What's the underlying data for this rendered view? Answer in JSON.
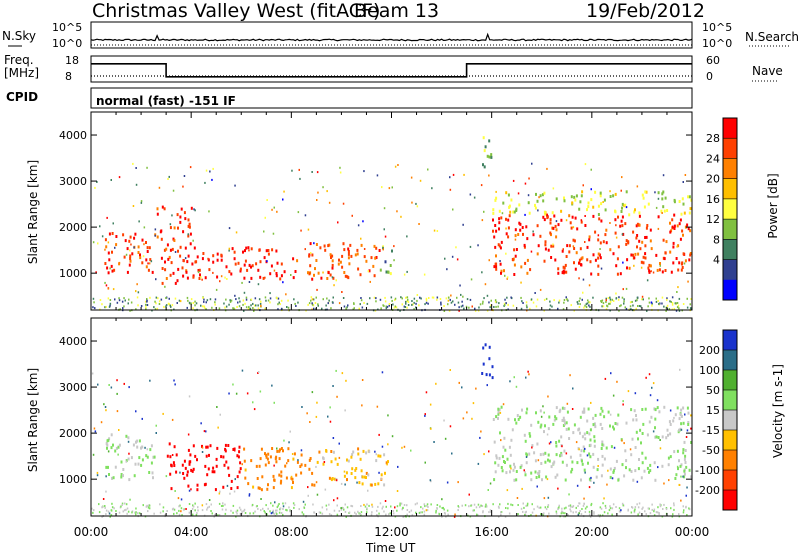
{
  "header": {
    "title_station": "Christmas Valley West (fitACF)",
    "title_beam": "Beam 13",
    "title_date": "19/Feb/2012"
  },
  "noise_panel": {
    "left_label": "N.Sky",
    "right_label": "N.Search",
    "left_ticks": [
      "10^5",
      "10^0"
    ],
    "right_ticks": [
      "10^5",
      "10^0"
    ]
  },
  "freq_panel": {
    "left_label_1": "Freq.",
    "left_label_2": "[MHz]",
    "right_label": "Nave",
    "left_ticks": [
      "18",
      "8"
    ],
    "right_ticks": [
      "60",
      "0"
    ]
  },
  "cpid_panel": {
    "label": "CPID",
    "text": "normal (fast) -151 IF"
  },
  "power_panel": {
    "ylabel": "Slant Range [km]",
    "colorbar_label": "Power [dB]",
    "colorbar_ticks": [
      "28",
      "24",
      "20",
      "16",
      "12",
      "8",
      "4"
    ],
    "colors": [
      "#ff0000",
      "#ff4000",
      "#ff8000",
      "#ffbf00",
      "#ffff40",
      "#80c040",
      "#408060",
      "#304090",
      "#0000ff"
    ]
  },
  "velocity_panel": {
    "ylabel": "Slant Range [km]",
    "colorbar_label": "Velocity [m s-1]",
    "colorbar_ticks": [
      "200",
      "100",
      "50",
      "15",
      "-15",
      "-50",
      "-100",
      "-200"
    ],
    "colors": [
      "#1a33cc",
      "#2b6e88",
      "#50b030",
      "#80e060",
      "#c8c8c8",
      "#ffc000",
      "#ff8000",
      "#ff4000",
      "#ff0000"
    ]
  },
  "xaxis": {
    "label": "Time UT",
    "ticks": [
      "00:00",
      "04:00",
      "08:00",
      "12:00",
      "16:00",
      "20:00",
      "00:00"
    ]
  },
  "chart_data": [
    {
      "type": "line",
      "title": "N.Sky / N.Search",
      "x": [
        0,
        2.6,
        2.7,
        8,
        12,
        15.8,
        15.9,
        24
      ],
      "series": [
        {
          "name": "N.Sky",
          "values": [
            0.5,
            0.6,
            1.4,
            0.7,
            0.6,
            0.7,
            1.6,
            0.5
          ]
        }
      ],
      "ylim": [
        0,
        5
      ]
    },
    {
      "type": "line",
      "title": "Freq. / Nave",
      "x": [
        0,
        3.0,
        3.0,
        15.0,
        15.0,
        24
      ],
      "series": [
        {
          "name": "Freq. [MHz]",
          "values": [
            15,
            15,
            10,
            10,
            15,
            15
          ]
        },
        {
          "name": "Nave",
          "values": [
            5,
            5,
            5,
            5,
            5,
            5
          ]
        }
      ],
      "ylim": [
        8,
        18
      ]
    },
    {
      "type": "heatmap",
      "title": "Power [dB]",
      "xlabel": "Time UT",
      "ylabel": "Slant Range [km]",
      "xlim": [
        0,
        24
      ],
      "ylim": [
        200,
        4500
      ],
      "y_ticks": [
        1000,
        2000,
        3000,
        4000
      ],
      "regions": [
        {
          "t0": 0.5,
          "t1": 2.6,
          "r0": 1000,
          "r1": 1900,
          "value": 26
        },
        {
          "t0": 2.6,
          "t1": 4.0,
          "r0": 800,
          "r1": 2500,
          "value": 26
        },
        {
          "t0": 4.0,
          "t1": 8.0,
          "r0": 900,
          "r1": 1600,
          "value": 28
        },
        {
          "t0": 8.0,
          "t1": 11.5,
          "r0": 900,
          "r1": 1700,
          "value": 24
        },
        {
          "t0": 11.5,
          "t1": 12.0,
          "r0": 1000,
          "r1": 1700,
          "value": 10
        },
        {
          "t0": 15.5,
          "t1": 16.0,
          "r0": 3200,
          "r1": 4000,
          "value": 10
        },
        {
          "t0": 16.0,
          "t1": 24.0,
          "r0": 1000,
          "r1": 2300,
          "value": 26
        },
        {
          "t0": 16.0,
          "t1": 24.0,
          "r0": 2300,
          "r1": 2800,
          "value": 14
        }
      ]
    },
    {
      "type": "heatmap",
      "title": "Velocity [m s-1]",
      "xlabel": "Time UT",
      "ylabel": "Slant Range [km]",
      "xlim": [
        0,
        24
      ],
      "ylim": [
        200,
        4500
      ],
      "y_ticks": [
        1000,
        2000,
        3000,
        4000
      ],
      "regions": [
        {
          "t0": 0.5,
          "t1": 2.6,
          "r0": 1000,
          "r1": 2000,
          "value": 0
        },
        {
          "t0": 3.0,
          "t1": 6.0,
          "r0": 800,
          "r1": 1800,
          "value": -200
        },
        {
          "t0": 6.0,
          "t1": 9.0,
          "r0": 800,
          "r1": 1700,
          "value": -100
        },
        {
          "t0": 9.0,
          "t1": 12.0,
          "r0": 900,
          "r1": 1700,
          "value": -50
        },
        {
          "t0": 15.5,
          "t1": 16.0,
          "r0": 3200,
          "r1": 4000,
          "value": 200
        },
        {
          "t0": 16.0,
          "t1": 24.0,
          "r0": 1000,
          "r1": 2600,
          "value": 0
        }
      ]
    }
  ]
}
